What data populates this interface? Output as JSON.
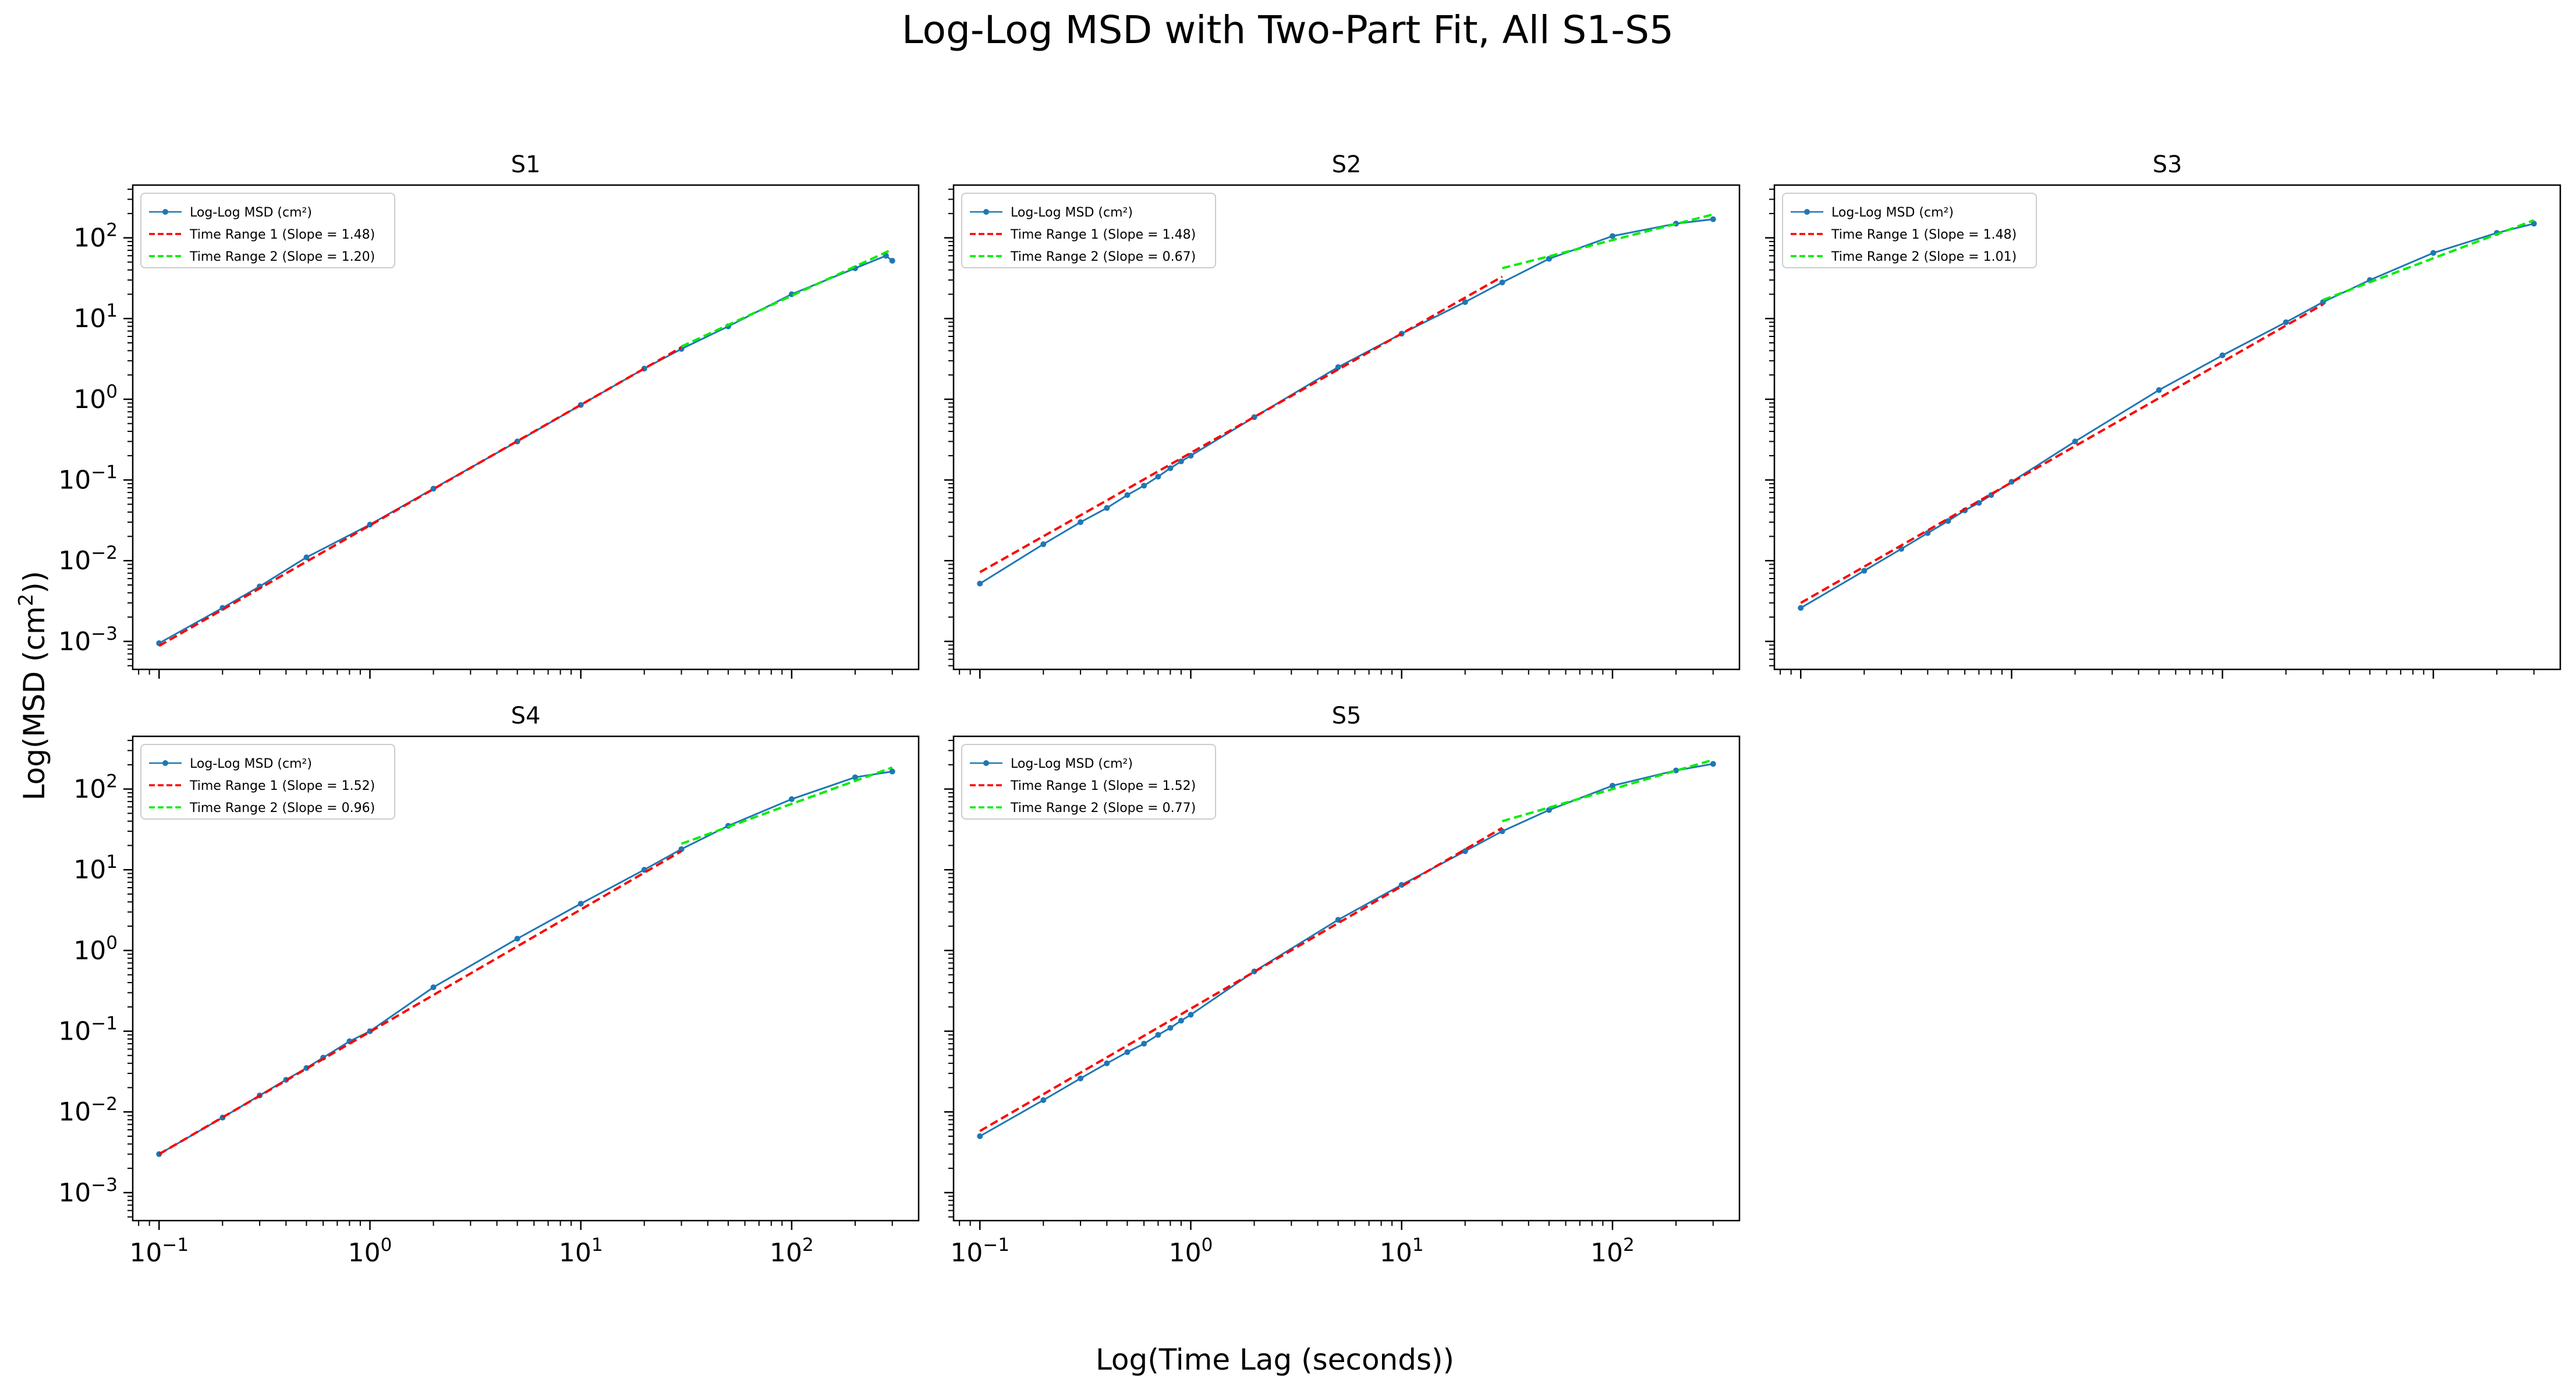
{
  "figure": {
    "title": "Log-Log MSD with Two-Part Fit, All S1-S5",
    "xlabel": "Log(Time Lag (seconds))",
    "ylabel_prefix": "Log(MSD (cm",
    "ylabel_sup": "2",
    "ylabel_suffix": "))"
  },
  "colors": {
    "msd": "#1f77b4",
    "fit1": "#ff0000",
    "fit2": "#00ee00",
    "axes": "#000000"
  },
  "chart_data": [
    {
      "type": "line",
      "title": "S1",
      "xscale": "log",
      "yscale": "log",
      "xlim": [
        0.075,
        400
      ],
      "ylim": [
        0.00045,
        450
      ],
      "xticks": [
        {
          "v": 0.1,
          "base": "10",
          "exp": "−1"
        },
        {
          "v": 1,
          "base": "10",
          "exp": "0"
        },
        {
          "v": 10,
          "base": "10",
          "exp": "1"
        },
        {
          "v": 100,
          "base": "10",
          "exp": "2"
        }
      ],
      "yticks": [
        {
          "v": 0.001,
          "base": "10",
          "exp": "−3"
        },
        {
          "v": 0.01,
          "base": "10",
          "exp": "−2"
        },
        {
          "v": 0.1,
          "base": "10",
          "exp": "−1"
        },
        {
          "v": 1,
          "base": "10",
          "exp": "0"
        },
        {
          "v": 10,
          "base": "10",
          "exp": "1"
        },
        {
          "v": 100,
          "base": "10",
          "exp": "2"
        }
      ],
      "show_xticklabels": false,
      "show_yticklabels": true,
      "legend": "upper left",
      "series": [
        {
          "name": "Log-Log MSD (cm²)",
          "kind": "data",
          "x": [
            0.1,
            0.2,
            0.3,
            0.5,
            1,
            2,
            5,
            10,
            20,
            30,
            50,
            100,
            200,
            280,
            300
          ],
          "y": [
            0.00095,
            0.0026,
            0.0048,
            0.011,
            0.028,
            0.078,
            0.3,
            0.85,
            2.4,
            4.2,
            8.0,
            20,
            42,
            60,
            52
          ]
        },
        {
          "name": "Time Range 1 (Slope = 1.48)",
          "kind": "fit1",
          "x": [
            0.1,
            30
          ],
          "y": [
            0.00088,
            4.4
          ]
        },
        {
          "name": "Time Range 2 (Slope = 1.20)",
          "kind": "fit2",
          "x": [
            30,
            300
          ],
          "y": [
            4.5,
            72
          ]
        }
      ]
    },
    {
      "type": "line",
      "title": "S2",
      "xscale": "log",
      "yscale": "log",
      "xlim": [
        0.075,
        400
      ],
      "ylim": [
        0.00045,
        450
      ],
      "xticks": [
        {
          "v": 0.1,
          "base": "10",
          "exp": "−1"
        },
        {
          "v": 1,
          "base": "10",
          "exp": "0"
        },
        {
          "v": 10,
          "base": "10",
          "exp": "1"
        },
        {
          "v": 100,
          "base": "10",
          "exp": "2"
        }
      ],
      "yticks": [
        {
          "v": 0.001,
          "base": "10",
          "exp": "−3"
        },
        {
          "v": 0.01,
          "base": "10",
          "exp": "−2"
        },
        {
          "v": 0.1,
          "base": "10",
          "exp": "−1"
        },
        {
          "v": 1,
          "base": "10",
          "exp": "0"
        },
        {
          "v": 10,
          "base": "10",
          "exp": "1"
        },
        {
          "v": 100,
          "base": "10",
          "exp": "2"
        }
      ],
      "show_xticklabels": false,
      "show_yticklabels": false,
      "legend": "upper left",
      "series": [
        {
          "name": "Log-Log MSD (cm²)",
          "kind": "data",
          "x": [
            0.1,
            0.2,
            0.3,
            0.4,
            0.5,
            0.6,
            0.7,
            0.8,
            0.9,
            1,
            2,
            5,
            10,
            20,
            30,
            50,
            100,
            200,
            300
          ],
          "y": [
            0.0052,
            0.016,
            0.03,
            0.045,
            0.065,
            0.085,
            0.11,
            0.14,
            0.17,
            0.2,
            0.6,
            2.5,
            6.5,
            16,
            28,
            55,
            105,
            150,
            170
          ]
        },
        {
          "name": "Time Range 1 (Slope = 1.48)",
          "kind": "fit1",
          "x": [
            0.1,
            30
          ],
          "y": [
            0.0072,
            33
          ]
        },
        {
          "name": "Time Range 2 (Slope = 0.67)",
          "kind": "fit2",
          "x": [
            30,
            300
          ],
          "y": [
            42,
            195
          ]
        }
      ]
    },
    {
      "type": "line",
      "title": "S3",
      "xscale": "log",
      "yscale": "log",
      "xlim": [
        0.075,
        400
      ],
      "ylim": [
        0.00045,
        450
      ],
      "xticks": [
        {
          "v": 0.1,
          "base": "10",
          "exp": "−1"
        },
        {
          "v": 1,
          "base": "10",
          "exp": "0"
        },
        {
          "v": 10,
          "base": "10",
          "exp": "1"
        },
        {
          "v": 100,
          "base": "10",
          "exp": "2"
        }
      ],
      "yticks": [
        {
          "v": 0.001,
          "base": "10",
          "exp": "−3"
        },
        {
          "v": 0.01,
          "base": "10",
          "exp": "−2"
        },
        {
          "v": 0.1,
          "base": "10",
          "exp": "−1"
        },
        {
          "v": 1,
          "base": "10",
          "exp": "0"
        },
        {
          "v": 10,
          "base": "10",
          "exp": "1"
        },
        {
          "v": 100,
          "base": "10",
          "exp": "2"
        }
      ],
      "show_xticklabels": false,
      "show_yticklabels": false,
      "legend": "upper left",
      "series": [
        {
          "name": "Log-Log MSD (cm²)",
          "kind": "data",
          "x": [
            0.1,
            0.2,
            0.3,
            0.4,
            0.5,
            0.6,
            0.7,
            0.8,
            1,
            2,
            5,
            10,
            20,
            30,
            50,
            100,
            200,
            300
          ],
          "y": [
            0.0026,
            0.0075,
            0.014,
            0.022,
            0.031,
            0.042,
            0.052,
            0.065,
            0.095,
            0.3,
            1.3,
            3.5,
            9,
            16,
            30,
            65,
            115,
            150
          ]
        },
        {
          "name": "Time Range 1 (Slope = 1.48)",
          "kind": "fit1",
          "x": [
            0.1,
            30
          ],
          "y": [
            0.003,
            15
          ]
        },
        {
          "name": "Time Range 2 (Slope = 1.01)",
          "kind": "fit2",
          "x": [
            30,
            300
          ],
          "y": [
            17,
            165
          ]
        }
      ]
    },
    {
      "type": "line",
      "title": "S4",
      "xscale": "log",
      "yscale": "log",
      "xlim": [
        0.075,
        400
      ],
      "ylim": [
        0.00045,
        450
      ],
      "xticks": [
        {
          "v": 0.1,
          "base": "10",
          "exp": "−1"
        },
        {
          "v": 1,
          "base": "10",
          "exp": "0"
        },
        {
          "v": 10,
          "base": "10",
          "exp": "1"
        },
        {
          "v": 100,
          "base": "10",
          "exp": "2"
        }
      ],
      "yticks": [
        {
          "v": 0.001,
          "base": "10",
          "exp": "−3"
        },
        {
          "v": 0.01,
          "base": "10",
          "exp": "−2"
        },
        {
          "v": 0.1,
          "base": "10",
          "exp": "−1"
        },
        {
          "v": 1,
          "base": "10",
          "exp": "0"
        },
        {
          "v": 10,
          "base": "10",
          "exp": "1"
        },
        {
          "v": 100,
          "base": "10",
          "exp": "2"
        }
      ],
      "show_xticklabels": true,
      "show_yticklabels": true,
      "legend": "upper left",
      "series": [
        {
          "name": "Log-Log MSD (cm²)",
          "kind": "data",
          "x": [
            0.1,
            0.2,
            0.3,
            0.4,
            0.5,
            0.6,
            0.8,
            1,
            2,
            5,
            10,
            20,
            30,
            50,
            100,
            200,
            300
          ],
          "y": [
            0.003,
            0.0085,
            0.016,
            0.025,
            0.035,
            0.047,
            0.075,
            0.1,
            0.35,
            1.4,
            3.8,
            10,
            18,
            35,
            75,
            140,
            165
          ]
        },
        {
          "name": "Time Range 1 (Slope = 1.52)",
          "kind": "fit1",
          "x": [
            0.1,
            30
          ],
          "y": [
            0.003,
            17
          ]
        },
        {
          "name": "Time Range 2 (Slope = 0.96)",
          "kind": "fit2",
          "x": [
            30,
            300
          ],
          "y": [
            21,
            185
          ]
        }
      ]
    },
    {
      "type": "line",
      "title": "S5",
      "xscale": "log",
      "yscale": "log",
      "xlim": [
        0.075,
        400
      ],
      "ylim": [
        0.00045,
        450
      ],
      "xticks": [
        {
          "v": 0.1,
          "base": "10",
          "exp": "−1"
        },
        {
          "v": 1,
          "base": "10",
          "exp": "0"
        },
        {
          "v": 10,
          "base": "10",
          "exp": "1"
        },
        {
          "v": 100,
          "base": "10",
          "exp": "2"
        }
      ],
      "yticks": [
        {
          "v": 0.001,
          "base": "10",
          "exp": "−3"
        },
        {
          "v": 0.01,
          "base": "10",
          "exp": "−2"
        },
        {
          "v": 0.1,
          "base": "10",
          "exp": "−1"
        },
        {
          "v": 1,
          "base": "10",
          "exp": "0"
        },
        {
          "v": 10,
          "base": "10",
          "exp": "1"
        },
        {
          "v": 100,
          "base": "10",
          "exp": "2"
        }
      ],
      "show_xticklabels": true,
      "show_yticklabels": false,
      "legend": "upper left",
      "series": [
        {
          "name": "Log-Log MSD (cm²)",
          "kind": "data",
          "x": [
            0.1,
            0.2,
            0.3,
            0.4,
            0.5,
            0.6,
            0.7,
            0.8,
            0.9,
            1,
            2,
            5,
            10,
            20,
            30,
            50,
            100,
            200,
            300
          ],
          "y": [
            0.005,
            0.014,
            0.026,
            0.04,
            0.055,
            0.07,
            0.09,
            0.11,
            0.135,
            0.16,
            0.55,
            2.4,
            6.5,
            17,
            30,
            55,
            110,
            170,
            205
          ]
        },
        {
          "name": "Time Range 1 (Slope = 1.52)",
          "kind": "fit1",
          "x": [
            0.1,
            30
          ],
          "y": [
            0.0058,
            33
          ]
        },
        {
          "name": "Time Range 2 (Slope = 0.77)",
          "kind": "fit2",
          "x": [
            30,
            300
          ],
          "y": [
            40,
            230
          ]
        }
      ]
    }
  ]
}
